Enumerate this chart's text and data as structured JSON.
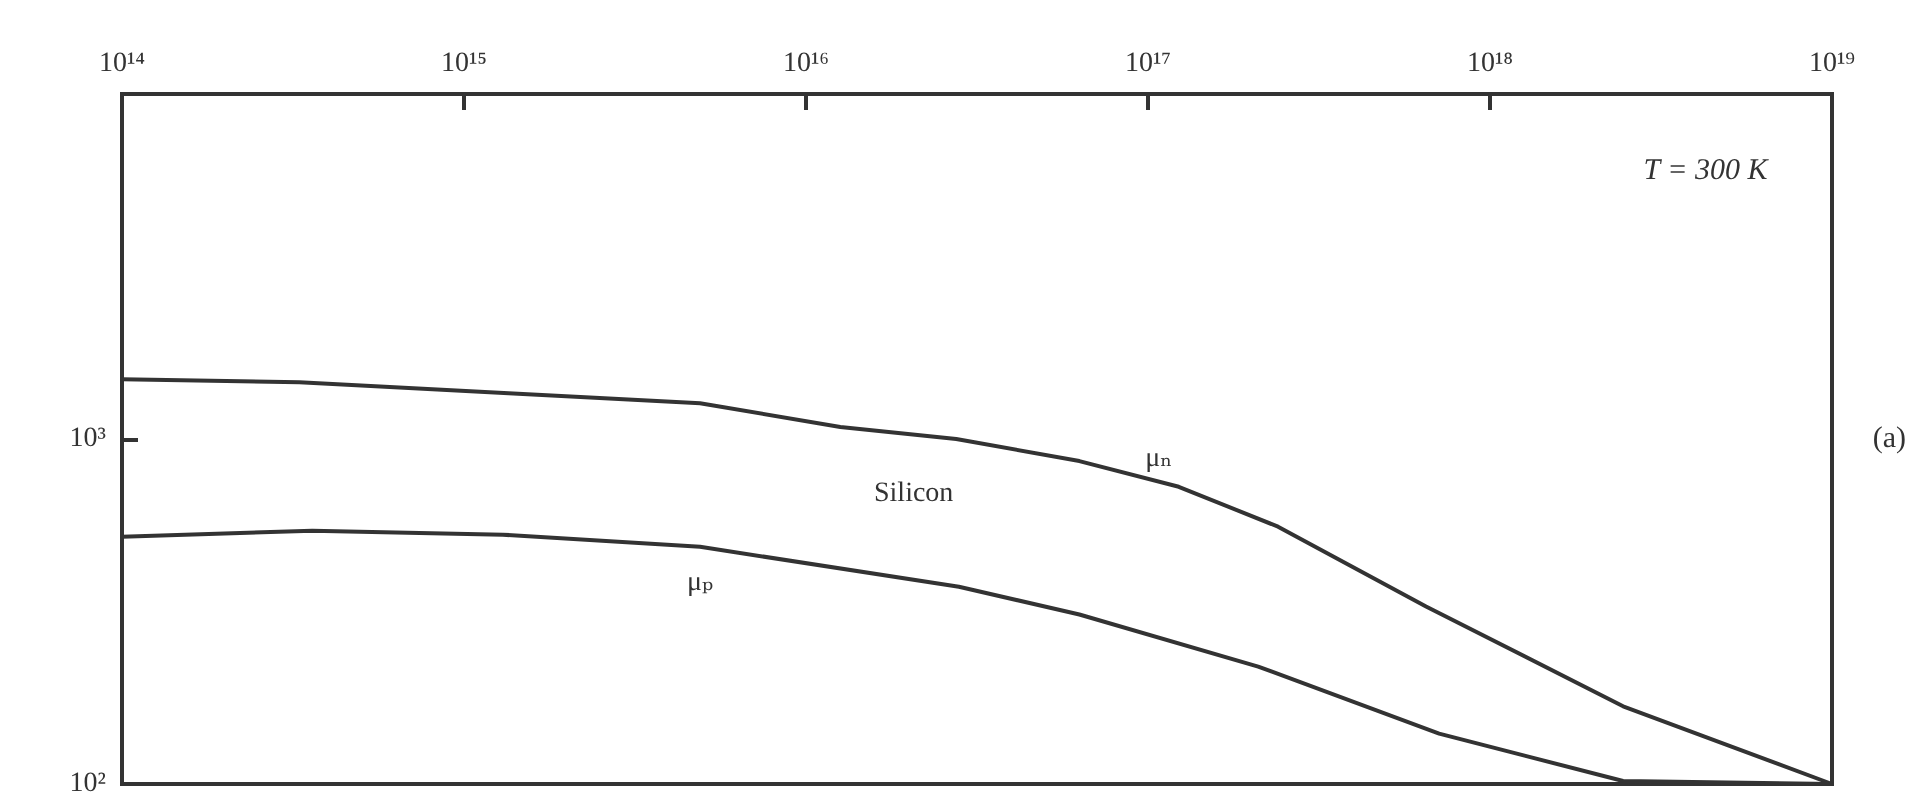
{
  "chart_data": {
    "type": "line",
    "series": [
      {
        "name": "μₙ",
        "color": "#333333",
        "x": [
          100000000000000.0,
          330000000000000.0,
          1350000000000000.0,
          4900000000000000.0,
          1.26e+16,
          2.75e+16,
          6.3e+16,
          1.23e+17,
          2.4e+17,
          6.5e+17,
          2.45e+18,
          1e+19
        ],
        "values": [
          1490,
          1460,
          1358,
          1270,
          1083,
          1000,
          863,
          727,
          557,
          327,
          168,
          100
        ]
      },
      {
        "name": "μₚ",
        "color": "#333333",
        "x": [
          100000000000000.0,
          360000000000000.0,
          1300000000000000.0,
          4900000000000000.0,
          2.8e+16,
          6.3e+16,
          2.1e+17,
          7.1e+17,
          2.45e+18,
          1e+19
        ],
        "values": [
          521,
          542,
          528,
          487,
          373,
          310,
          219,
          140,
          102,
          100
        ]
      }
    ],
    "log": "xy",
    "xlim": [
      100000000000000.0,
      1e+19
    ],
    "xticks": [
      {
        "value": 100000000000000.0,
        "label": "10¹⁴"
      },
      {
        "value": 1000000000000000.0,
        "label": "10¹⁵"
      },
      {
        "value": 1e+16,
        "label": "10¹⁶"
      },
      {
        "value": 1e+17,
        "label": "10¹⁷"
      },
      {
        "value": 1e+18,
        "label": "10¹⁸"
      },
      {
        "value": 1e+19,
        "label": "10¹⁹"
      }
    ],
    "ylim": [
      100,
      10000
    ],
    "yticks": [
      {
        "value": 100,
        "label": "10²"
      },
      {
        "value": 1000,
        "label": "10³"
      }
    ],
    "annotations": [
      "T = 300 K",
      "Silicon",
      "(a)"
    ],
    "grid": false,
    "marker": "none",
    "line_style": "solid"
  }
}
